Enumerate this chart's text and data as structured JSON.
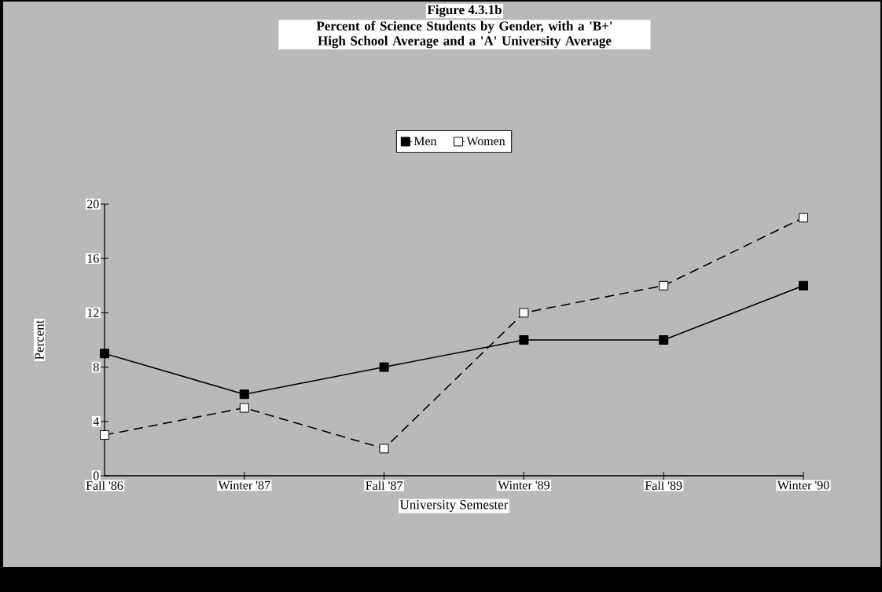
{
  "chart_data": {
    "type": "line",
    "title": "Figure 4.3.1b",
    "subtitle": "Percent of Science Students by Gender, with a 'B+' High School Average and a 'A' University Average",
    "xlabel": "University Semester",
    "ylabel": "Percent",
    "categories": [
      "Fall '86",
      "Winter '87",
      "Fall '87",
      "Winter '89",
      "Fall '89",
      "Winter '90"
    ],
    "series": [
      {
        "name": "Men",
        "color": "#000000",
        "line_style": "solid",
        "values": [
          9,
          6,
          8,
          10,
          10,
          14
        ]
      },
      {
        "name": "Women",
        "color": "#ffffff",
        "line_style": "dashed",
        "values": [
          3,
          5,
          2,
          12,
          14,
          19
        ]
      }
    ],
    "ylim": [
      0,
      20
    ],
    "yticks": [
      0,
      4,
      8,
      12,
      16,
      20
    ],
    "grid": false,
    "legend": "top",
    "marker": "square"
  }
}
